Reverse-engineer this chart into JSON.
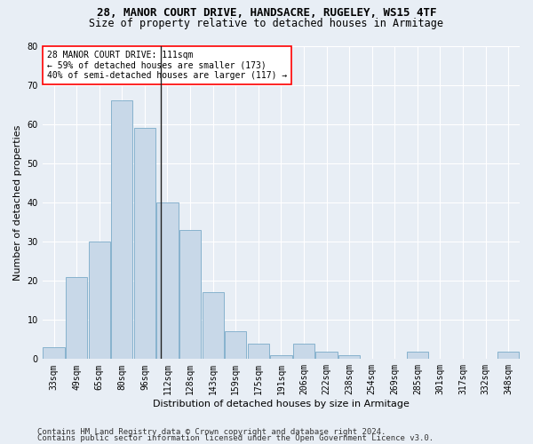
{
  "title": "28, MANOR COURT DRIVE, HANDSACRE, RUGELEY, WS15 4TF",
  "subtitle": "Size of property relative to detached houses in Armitage",
  "xlabel": "Distribution of detached houses by size in Armitage",
  "ylabel": "Number of detached properties",
  "categories": [
    "33sqm",
    "49sqm",
    "65sqm",
    "80sqm",
    "96sqm",
    "112sqm",
    "128sqm",
    "143sqm",
    "159sqm",
    "175sqm",
    "191sqm",
    "206sqm",
    "222sqm",
    "238sqm",
    "254sqm",
    "269sqm",
    "285sqm",
    "301sqm",
    "317sqm",
    "332sqm",
    "348sqm"
  ],
  "values": [
    3,
    21,
    30,
    66,
    59,
    40,
    33,
    17,
    7,
    4,
    1,
    4,
    2,
    1,
    0,
    0,
    2,
    0,
    0,
    0,
    2
  ],
  "bar_color": "#c8d8e8",
  "bar_edge_color": "#7aaac8",
  "property_line_index": 4.72,
  "property_sqm": 111,
  "annotation_text": "28 MANOR COURT DRIVE: 111sqm\n← 59% of detached houses are smaller (173)\n40% of semi-detached houses are larger (117) →",
  "footer1": "Contains HM Land Registry data © Crown copyright and database right 2024.",
  "footer2": "Contains public sector information licensed under the Open Government Licence v3.0.",
  "ylim": [
    0,
    80
  ],
  "background_color": "#e8eef5",
  "plot_background": "#e8eef5",
  "grid_color": "white",
  "title_fontsize": 9,
  "subtitle_fontsize": 8.5,
  "axis_label_fontsize": 8,
  "tick_fontsize": 7,
  "annotation_fontsize": 7,
  "footer_fontsize": 6.5
}
